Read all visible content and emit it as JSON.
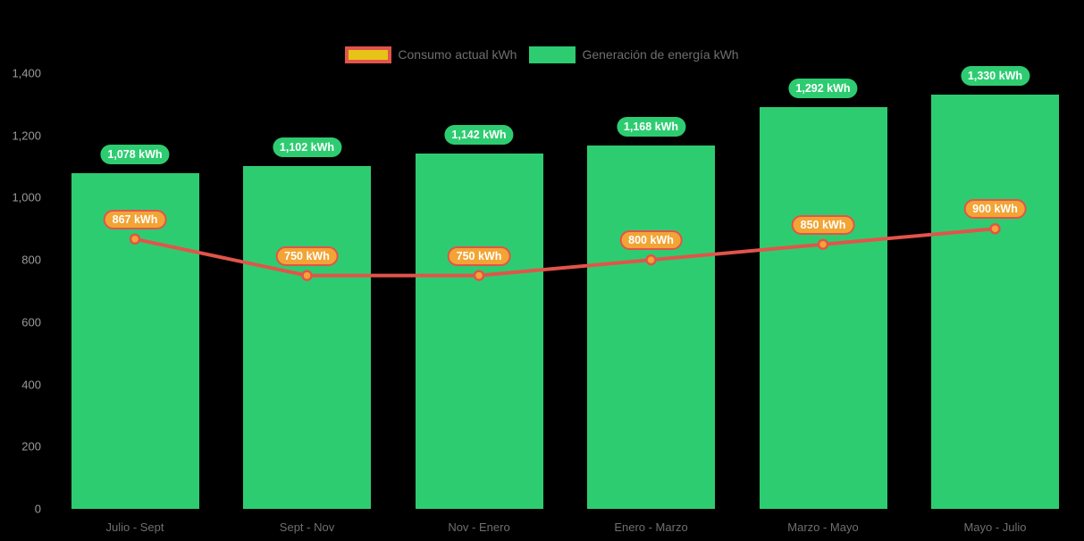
{
  "chart_data": {
    "type": "combo-bar-line",
    "title": "",
    "categories": [
      "Julio - Sept",
      "Sept - Nov",
      "Nov - Enero",
      "Enero - Marzo",
      "Marzo - Mayo",
      "Mayo - Julio"
    ],
    "series": [
      {
        "name": "Consumo actual kWh",
        "type": "line",
        "values": [
          867,
          750,
          750,
          800,
          850,
          900
        ],
        "data_labels": [
          "867 kWh",
          "750 kWh",
          "750 kWh",
          "800 kWh",
          "850 kWh",
          "900 kWh"
        ]
      },
      {
        "name": "Generación de energía kWh",
        "type": "bar",
        "values": [
          1078,
          1102,
          1142,
          1168,
          1292,
          1330
        ],
        "data_labels": [
          "1,078 kWh",
          "1,102 kWh",
          "1,142 kWh",
          "1,168 kWh",
          "1,292 kWh",
          "1,330 kWh"
        ]
      }
    ],
    "ylim": [
      0,
      1400
    ],
    "yticks": [
      {
        "value": 0,
        "label": "0"
      },
      {
        "value": 200,
        "label": "200"
      },
      {
        "value": 400,
        "label": "400"
      },
      {
        "value": 600,
        "label": "600"
      },
      {
        "value": 800,
        "label": "800"
      },
      {
        "value": 1000,
        "label": "1,000"
      },
      {
        "value": 1200,
        "label": "1,200"
      },
      {
        "value": 1400,
        "label": "1,400"
      }
    ],
    "grid": false,
    "legend_position": "top"
  },
  "colors": {
    "bar_fill": "#2ecc71",
    "bar_label_pill_bg": "#2ecc71",
    "line_stroke": "#e2544a",
    "point_fill": "#f2a434",
    "point_label_pill_bg": "#f2a434",
    "point_label_pill_border": "#e2544a",
    "legend_line_swatch_fill": "#e7c318",
    "legend_line_swatch_border": "#e2544a",
    "axis_tick_text": "#9a9a9a",
    "category_text": "#6f6f6f",
    "legend_text": "#6f6f6f",
    "data_label_text": "#ffffff",
    "background": "#000000"
  }
}
